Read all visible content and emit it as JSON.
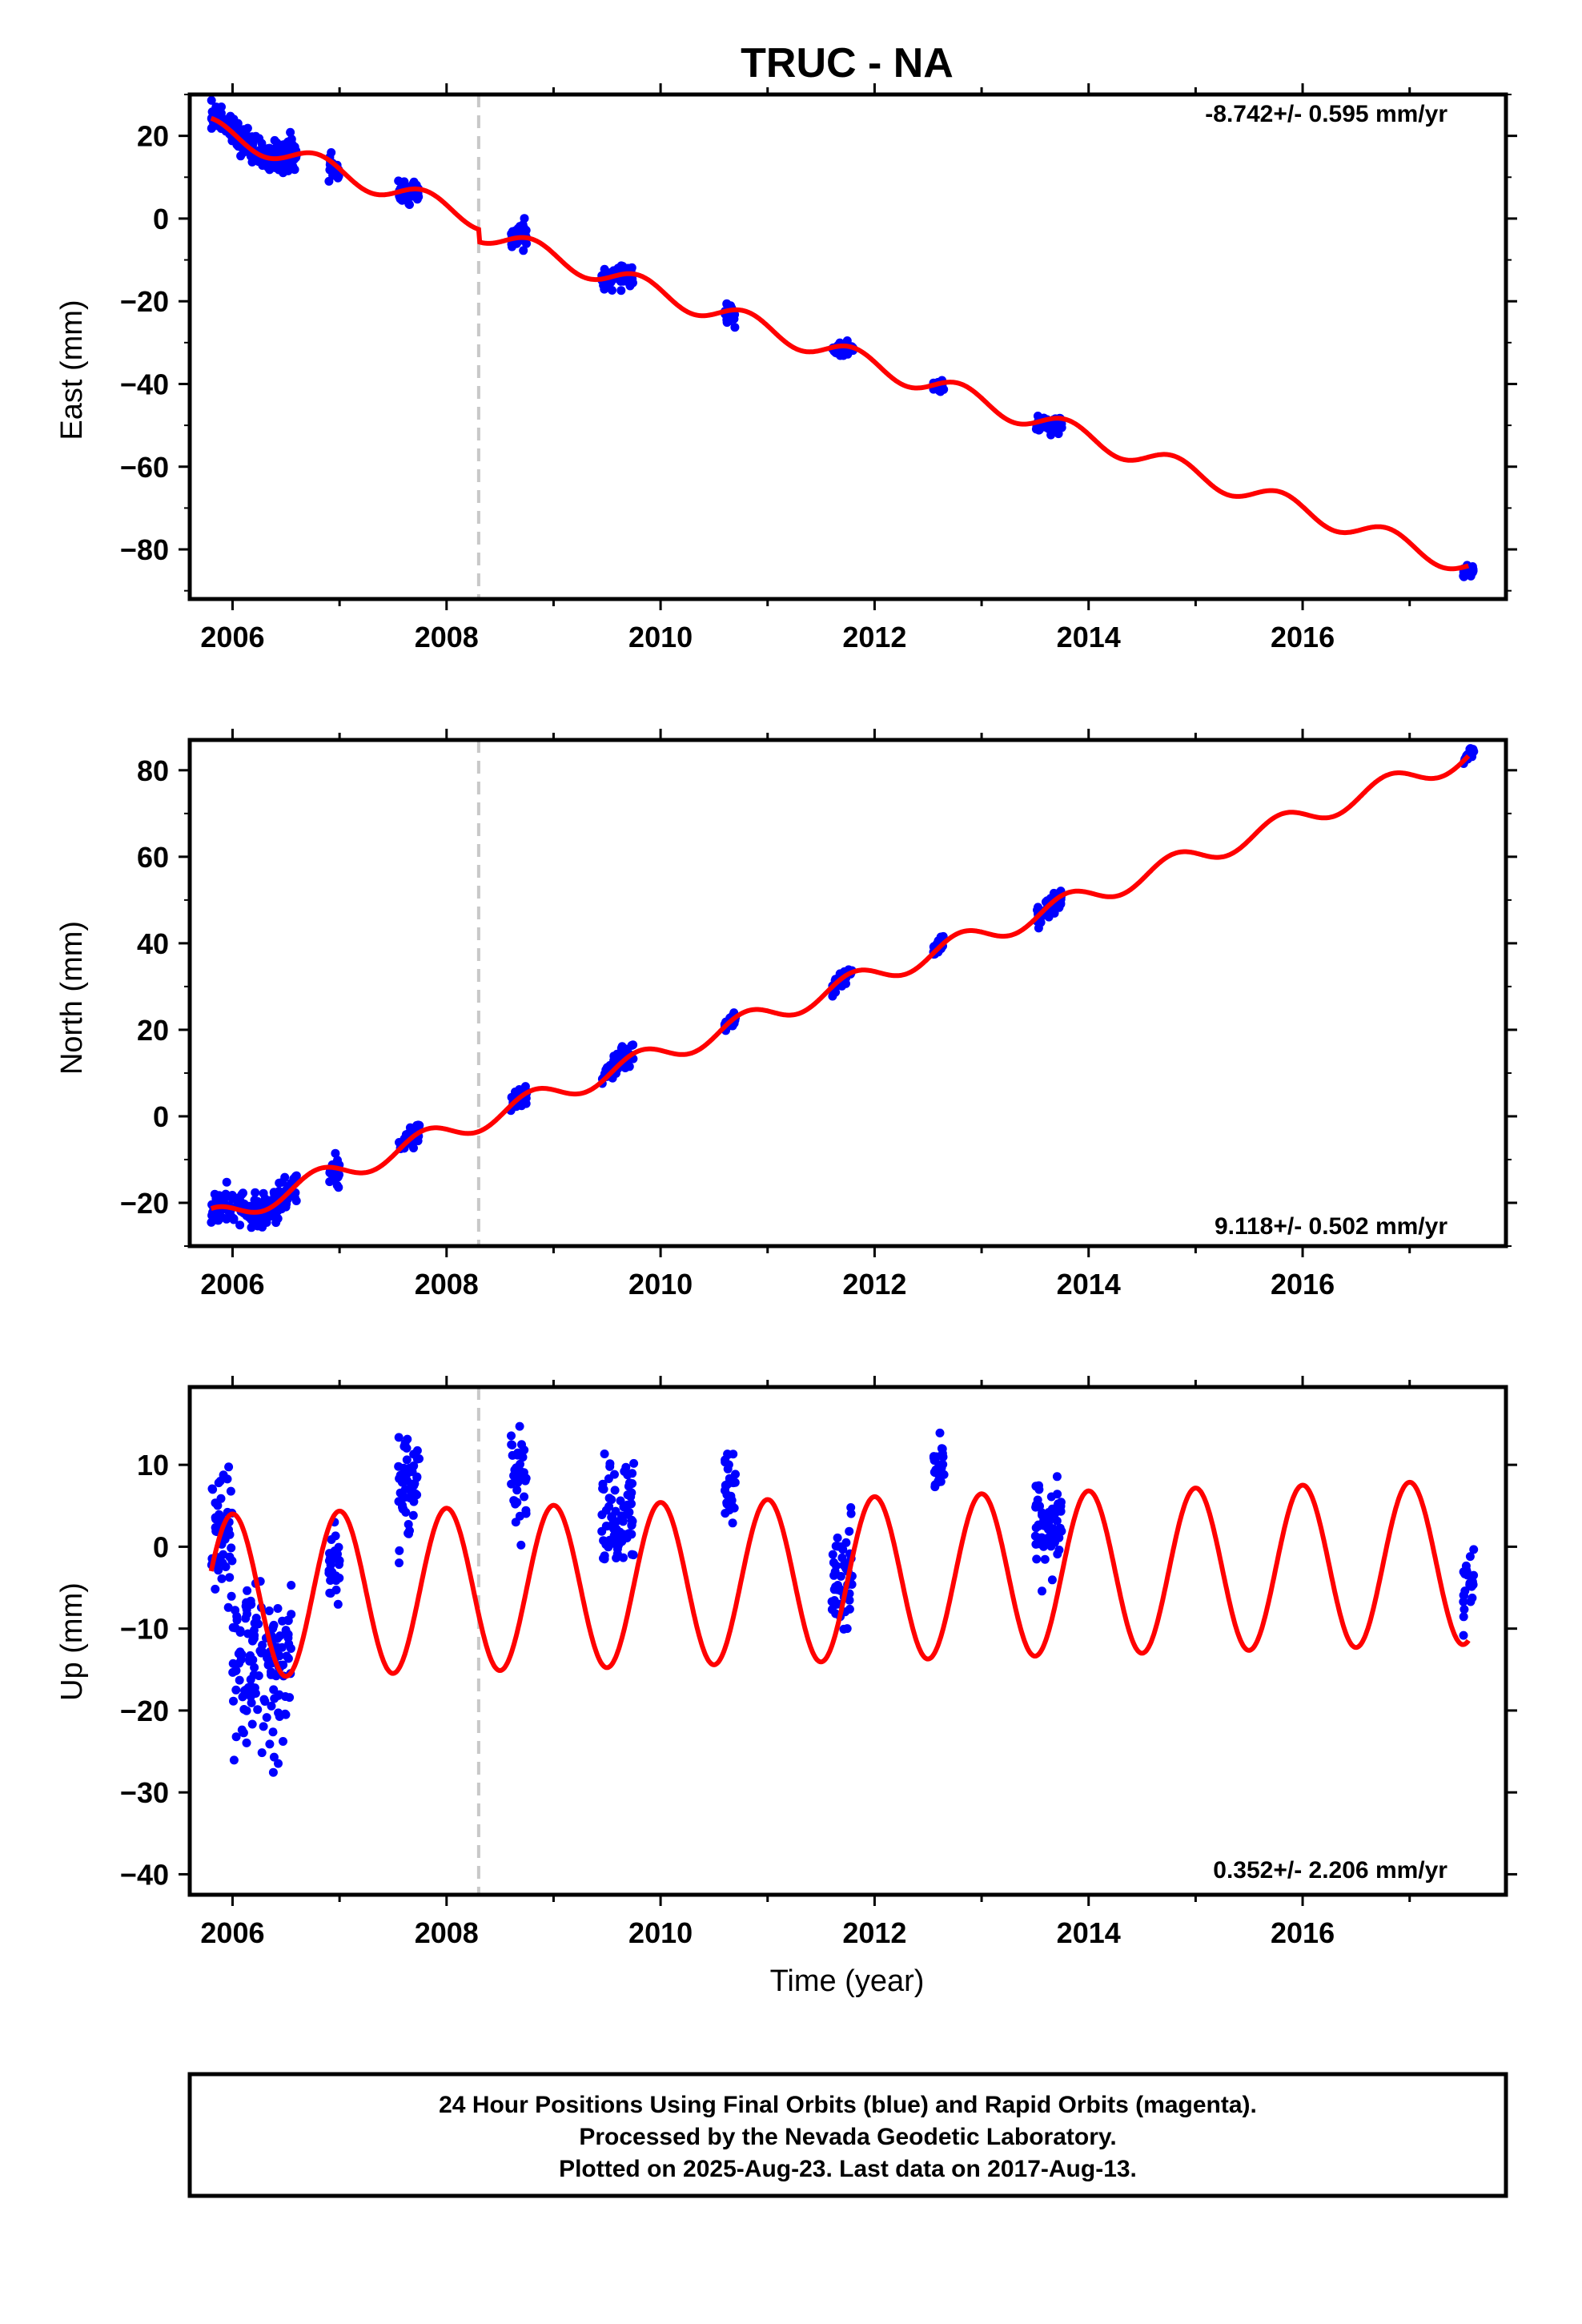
{
  "title": "TRUC - NA",
  "xlabel": "Time (year)",
  "footer": {
    "line1": "24 Hour Positions Using Final Orbits (blue) and Rapid Orbits (magenta).",
    "line2": "Processed by the Nevada Geodetic Laboratory.",
    "line3": "Plotted on 2025-Aug-23. Last data on 2017-Aug-13."
  },
  "colors": {
    "data_points": "#0000ff",
    "model_fit": "#ff0000",
    "equipment_change": "#c8c8c8",
    "axes": "#000000"
  },
  "chart_data": [
    {
      "type": "scatter",
      "component": "east",
      "ylabel": "East (mm)",
      "rate_text": "-8.742+/- 0.595 mm/yr",
      "rate_position": "top-right",
      "xlim": [
        2005.6,
        2017.9
      ],
      "ylim": [
        -92,
        30
      ],
      "yticks": [
        20,
        0,
        -20,
        -40,
        -60,
        -80
      ],
      "xticks": [
        2006,
        2008,
        2010,
        2012,
        2014,
        2016
      ],
      "model": {
        "intercept_at_2006": 20,
        "rate_mm_per_yr": -8.742,
        "annual_amplitude": 2.5,
        "annual_phase_yr": 0.55,
        "offset_2008_3": -3
      },
      "data_clusters": [
        {
          "x_start": 2005.8,
          "x_end": 2006.6,
          "center": 18,
          "spread": 3
        },
        {
          "x_start": 2006.9,
          "x_end": 2007.0,
          "center": 10,
          "spread": 2
        },
        {
          "x_start": 2007.55,
          "x_end": 2007.75,
          "center": 5,
          "spread": 2
        },
        {
          "x_start": 2008.6,
          "x_end": 2008.75,
          "center": -3,
          "spread": 2.5
        },
        {
          "x_start": 2009.45,
          "x_end": 2009.75,
          "center": -15,
          "spread": 2
        },
        {
          "x_start": 2010.6,
          "x_end": 2010.7,
          "center": -26,
          "spread": 2
        },
        {
          "x_start": 2011.6,
          "x_end": 2011.8,
          "center": -33,
          "spread": 1.5
        },
        {
          "x_start": 2012.55,
          "x_end": 2012.65,
          "center": -42,
          "spread": 1.5
        },
        {
          "x_start": 2013.5,
          "x_end": 2013.75,
          "center": -53,
          "spread": 1.5
        },
        {
          "x_start": 2017.5,
          "x_end": 2017.6,
          "center": -88,
          "spread": 1
        }
      ]
    },
    {
      "type": "scatter",
      "component": "north",
      "ylabel": "North (mm)",
      "rate_text": "9.118+/- 0.502 mm/yr",
      "rate_position": "bottom-right",
      "xlim": [
        2005.6,
        2017.9
      ],
      "ylim": [
        -30,
        87
      ],
      "yticks": [
        80,
        60,
        40,
        20,
        0,
        -20
      ],
      "xticks": [
        2006,
        2008,
        2010,
        2012,
        2014,
        2016
      ],
      "model": {
        "intercept_at_2006": -22,
        "rate_mm_per_yr": 9.118,
        "annual_amplitude": 2.5,
        "annual_phase_yr": 0.55,
        "offset_2008_3": 0
      },
      "data_clusters": [
        {
          "x_start": 2005.8,
          "x_end": 2006.6,
          "center": -22,
          "spread": 3
        },
        {
          "x_start": 2006.9,
          "x_end": 2007.0,
          "center": -16,
          "spread": 3
        },
        {
          "x_start": 2007.55,
          "x_end": 2007.75,
          "center": -3,
          "spread": 2
        },
        {
          "x_start": 2008.6,
          "x_end": 2008.75,
          "center": 4,
          "spread": 2
        },
        {
          "x_start": 2009.45,
          "x_end": 2009.75,
          "center": 14,
          "spread": 2
        },
        {
          "x_start": 2010.6,
          "x_end": 2010.7,
          "center": 21,
          "spread": 1.5
        },
        {
          "x_start": 2011.6,
          "x_end": 2011.8,
          "center": 30,
          "spread": 1.5
        },
        {
          "x_start": 2012.55,
          "x_end": 2012.65,
          "center": 41,
          "spread": 1.5
        },
        {
          "x_start": 2013.5,
          "x_end": 2013.75,
          "center": 47,
          "spread": 2
        },
        {
          "x_start": 2017.5,
          "x_end": 2017.6,
          "center": 83,
          "spread": 1
        }
      ]
    },
    {
      "type": "scatter",
      "component": "up",
      "ylabel": "Up (mm)",
      "rate_text": "0.352+/- 2.206 mm/yr",
      "rate_position": "bottom-right",
      "xlim": [
        2005.6,
        2017.9
      ],
      "ylim": [
        -42.5,
        19.5
      ],
      "yticks": [
        10,
        0,
        -10,
        -20,
        -30,
        -40
      ],
      "xticks": [
        2006,
        2008,
        2010,
        2012,
        2014,
        2016
      ],
      "model": {
        "intercept_at_2006": -6,
        "rate_mm_per_yr": 0.352,
        "annual_amplitude": 10,
        "annual_phase_yr": 0.75,
        "offset_2008_3": 0
      },
      "data_clusters": [
        {
          "x_start": 2005.8,
          "x_end": 2006.0,
          "center": 2,
          "spread": 6
        },
        {
          "x_start": 2006.0,
          "x_end": 2006.55,
          "center": -15,
          "spread": 8
        },
        {
          "x_start": 2006.9,
          "x_end": 2007.0,
          "center": -2,
          "spread": 4
        },
        {
          "x_start": 2007.55,
          "x_end": 2007.75,
          "center": 8,
          "spread": 5
        },
        {
          "x_start": 2008.6,
          "x_end": 2008.75,
          "center": 9,
          "spread": 5
        },
        {
          "x_start": 2009.45,
          "x_end": 2009.75,
          "center": 3,
          "spread": 6
        },
        {
          "x_start": 2010.6,
          "x_end": 2010.7,
          "center": 8,
          "spread": 4
        },
        {
          "x_start": 2011.6,
          "x_end": 2011.8,
          "center": -3,
          "spread": 5
        },
        {
          "x_start": 2012.55,
          "x_end": 2012.65,
          "center": 9,
          "spread": 3
        },
        {
          "x_start": 2013.5,
          "x_end": 2013.75,
          "center": 2,
          "spread": 5
        },
        {
          "x_start": 2017.5,
          "x_end": 2017.6,
          "center": -5,
          "spread": 4
        }
      ]
    }
  ],
  "equipment_change_x": 2008.3
}
